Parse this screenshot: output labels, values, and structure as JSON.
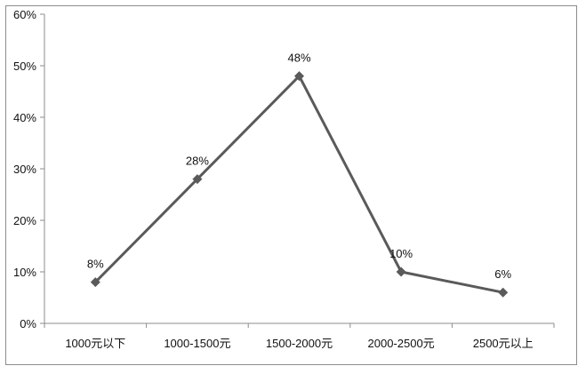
{
  "chart_data": {
    "type": "line",
    "title": "",
    "xlabel": "",
    "ylabel": "",
    "categories": [
      "1000元以下",
      "1000-1500元",
      "1500-2000元",
      "2000-2500元",
      "2500元以上"
    ],
    "series": [
      {
        "values": [
          8,
          28,
          48,
          10,
          6
        ],
        "data_labels": [
          "8%",
          "28%",
          "48%",
          "10%",
          "6%"
        ]
      }
    ],
    "ylim": [
      0,
      60
    ],
    "y_ticks": [
      "0%",
      "10%",
      "20%",
      "30%",
      "40%",
      "50%",
      "60%"
    ],
    "grid": false,
    "legend": "none",
    "marker": "diamond",
    "line_color": "#5a5a5a",
    "axis_color": "#8c8c8c"
  }
}
